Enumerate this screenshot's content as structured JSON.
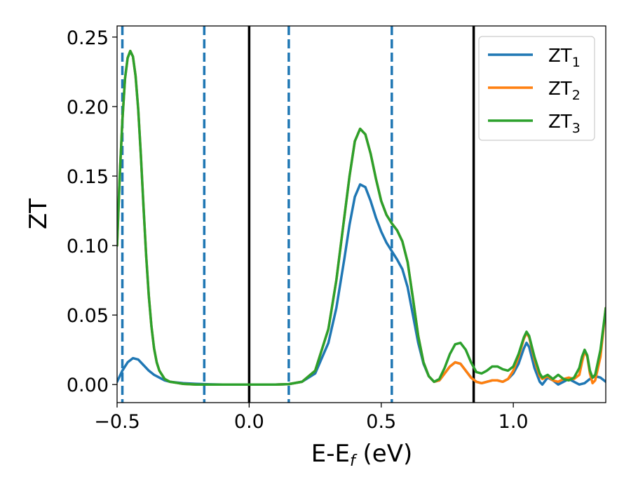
{
  "chart_data": {
    "type": "line",
    "xlabel": "E-E",
    "xlabel_sub": "f",
    "xlabel_unit": " (eV)",
    "ylabel": "ZT",
    "xlim": [
      -0.5,
      1.35
    ],
    "ylim": [
      -0.013,
      0.258
    ],
    "x_ticks": [
      -0.5,
      0.0,
      0.5,
      1.0
    ],
    "x_tick_labels": [
      "−0.5",
      "0.0",
      "0.5",
      "1.0"
    ],
    "y_ticks": [
      0.0,
      0.05,
      0.1,
      0.15,
      0.2,
      0.25
    ],
    "y_tick_labels": [
      "0.00",
      "0.05",
      "0.10",
      "0.15",
      "0.20",
      "0.25"
    ],
    "grid": false,
    "legend": "top-right",
    "vlines_solid": [
      0.0,
      0.85
    ],
    "vlines_dashed": [
      -0.48,
      -0.17,
      0.15,
      0.54
    ],
    "series": [
      {
        "name": "ZT",
        "name_sub": "1",
        "color": "#1f77b4",
        "points": [
          [
            -0.5,
            0.002
          ],
          [
            -0.48,
            0.01
          ],
          [
            -0.46,
            0.016
          ],
          [
            -0.44,
            0.019
          ],
          [
            -0.42,
            0.018
          ],
          [
            -0.4,
            0.014
          ],
          [
            -0.38,
            0.01
          ],
          [
            -0.36,
            0.007
          ],
          [
            -0.34,
            0.005
          ],
          [
            -0.32,
            0.003
          ],
          [
            -0.3,
            0.002
          ],
          [
            -0.25,
            0.001
          ],
          [
            -0.2,
            0.0005
          ],
          [
            -0.15,
            0.0002
          ],
          [
            -0.1,
            0.0
          ],
          [
            0.0,
            0.0
          ],
          [
            0.1,
            0.0
          ],
          [
            0.15,
            0.0003
          ],
          [
            0.2,
            0.002
          ],
          [
            0.25,
            0.008
          ],
          [
            0.3,
            0.03
          ],
          [
            0.33,
            0.055
          ],
          [
            0.36,
            0.09
          ],
          [
            0.38,
            0.115
          ],
          [
            0.4,
            0.135
          ],
          [
            0.42,
            0.144
          ],
          [
            0.44,
            0.142
          ],
          [
            0.46,
            0.132
          ],
          [
            0.48,
            0.12
          ],
          [
            0.5,
            0.11
          ],
          [
            0.52,
            0.102
          ],
          [
            0.54,
            0.096
          ],
          [
            0.56,
            0.09
          ],
          [
            0.58,
            0.083
          ],
          [
            0.6,
            0.07
          ],
          [
            0.62,
            0.05
          ],
          [
            0.64,
            0.03
          ],
          [
            0.66,
            0.015
          ],
          [
            0.68,
            0.006
          ],
          [
            0.7,
            0.002
          ],
          [
            0.72,
            0.003
          ],
          [
            0.74,
            0.008
          ],
          [
            0.76,
            0.013
          ],
          [
            0.78,
            0.016
          ],
          [
            0.8,
            0.015
          ],
          [
            0.82,
            0.01
          ],
          [
            0.84,
            0.005
          ],
          [
            0.86,
            0.002
          ],
          [
            0.88,
            0.001
          ],
          [
            0.9,
            0.002
          ],
          [
            0.92,
            0.003
          ],
          [
            0.94,
            0.003
          ],
          [
            0.96,
            0.002
          ],
          [
            0.98,
            0.004
          ],
          [
            1.0,
            0.008
          ],
          [
            1.02,
            0.015
          ],
          [
            1.04,
            0.026
          ],
          [
            1.05,
            0.03
          ],
          [
            1.06,
            0.027
          ],
          [
            1.08,
            0.012
          ],
          [
            1.1,
            0.002
          ],
          [
            1.11,
            0.0
          ],
          [
            1.13,
            0.005
          ],
          [
            1.15,
            0.003
          ],
          [
            1.17,
            0.0
          ],
          [
            1.19,
            0.002
          ],
          [
            1.21,
            0.004
          ],
          [
            1.23,
            0.002
          ],
          [
            1.25,
            0.0
          ],
          [
            1.27,
            0.001
          ],
          [
            1.29,
            0.004
          ],
          [
            1.31,
            0.006
          ],
          [
            1.33,
            0.005
          ],
          [
            1.35,
            0.002
          ]
        ]
      },
      {
        "name": "ZT",
        "name_sub": "2",
        "color": "#ff7f0e",
        "points": [
          [
            -0.5,
            0.1
          ],
          [
            -0.49,
            0.15
          ],
          [
            -0.48,
            0.19
          ],
          [
            -0.47,
            0.22
          ],
          [
            -0.46,
            0.235
          ],
          [
            -0.45,
            0.24
          ],
          [
            -0.44,
            0.236
          ],
          [
            -0.43,
            0.222
          ],
          [
            -0.42,
            0.198
          ],
          [
            -0.41,
            0.165
          ],
          [
            -0.4,
            0.128
          ],
          [
            -0.39,
            0.093
          ],
          [
            -0.38,
            0.064
          ],
          [
            -0.37,
            0.042
          ],
          [
            -0.36,
            0.026
          ],
          [
            -0.35,
            0.016
          ],
          [
            -0.34,
            0.01
          ],
          [
            -0.32,
            0.004
          ],
          [
            -0.3,
            0.002
          ],
          [
            -0.25,
            0.0005
          ],
          [
            -0.2,
            0.0
          ],
          [
            0.0,
            0.0
          ],
          [
            0.1,
            0.0
          ],
          [
            0.15,
            0.0003
          ],
          [
            0.2,
            0.002
          ],
          [
            0.25,
            0.01
          ],
          [
            0.3,
            0.04
          ],
          [
            0.33,
            0.075
          ],
          [
            0.36,
            0.12
          ],
          [
            0.38,
            0.15
          ],
          [
            0.4,
            0.175
          ],
          [
            0.42,
            0.184
          ],
          [
            0.44,
            0.18
          ],
          [
            0.46,
            0.166
          ],
          [
            0.48,
            0.148
          ],
          [
            0.5,
            0.132
          ],
          [
            0.52,
            0.122
          ],
          [
            0.54,
            0.116
          ],
          [
            0.56,
            0.111
          ],
          [
            0.58,
            0.103
          ],
          [
            0.6,
            0.088
          ],
          [
            0.62,
            0.062
          ],
          [
            0.64,
            0.035
          ],
          [
            0.66,
            0.016
          ],
          [
            0.68,
            0.006
          ],
          [
            0.7,
            0.002
          ],
          [
            0.72,
            0.003
          ],
          [
            0.74,
            0.008
          ],
          [
            0.76,
            0.013
          ],
          [
            0.78,
            0.016
          ],
          [
            0.8,
            0.015
          ],
          [
            0.82,
            0.01
          ],
          [
            0.84,
            0.005
          ],
          [
            0.86,
            0.002
          ],
          [
            0.88,
            0.001
          ],
          [
            0.9,
            0.002
          ],
          [
            0.92,
            0.003
          ],
          [
            0.94,
            0.003
          ],
          [
            0.96,
            0.002
          ],
          [
            0.98,
            0.004
          ],
          [
            1.0,
            0.01
          ],
          [
            1.02,
            0.02
          ],
          [
            1.04,
            0.033
          ],
          [
            1.05,
            0.037
          ],
          [
            1.06,
            0.034
          ],
          [
            1.08,
            0.018
          ],
          [
            1.1,
            0.006
          ],
          [
            1.11,
            0.004
          ],
          [
            1.13,
            0.006
          ],
          [
            1.15,
            0.003
          ],
          [
            1.17,
            0.002
          ],
          [
            1.19,
            0.004
          ],
          [
            1.21,
            0.005
          ],
          [
            1.23,
            0.004
          ],
          [
            1.25,
            0.007
          ],
          [
            1.26,
            0.016
          ],
          [
            1.27,
            0.024
          ],
          [
            1.28,
            0.02
          ],
          [
            1.29,
            0.008
          ],
          [
            1.3,
            0.001
          ],
          [
            1.31,
            0.003
          ],
          [
            1.33,
            0.02
          ],
          [
            1.35,
            0.055
          ]
        ]
      },
      {
        "name": "ZT",
        "name_sub": "3",
        "color": "#2ca02c",
        "points": [
          [
            -0.5,
            0.1
          ],
          [
            -0.49,
            0.15
          ],
          [
            -0.48,
            0.19
          ],
          [
            -0.47,
            0.22
          ],
          [
            -0.46,
            0.235
          ],
          [
            -0.45,
            0.24
          ],
          [
            -0.44,
            0.236
          ],
          [
            -0.43,
            0.222
          ],
          [
            -0.42,
            0.198
          ],
          [
            -0.41,
            0.165
          ],
          [
            -0.4,
            0.128
          ],
          [
            -0.39,
            0.093
          ],
          [
            -0.38,
            0.064
          ],
          [
            -0.37,
            0.042
          ],
          [
            -0.36,
            0.026
          ],
          [
            -0.35,
            0.016
          ],
          [
            -0.34,
            0.01
          ],
          [
            -0.32,
            0.004
          ],
          [
            -0.3,
            0.002
          ],
          [
            -0.25,
            0.0005
          ],
          [
            -0.2,
            0.0
          ],
          [
            0.0,
            0.0
          ],
          [
            0.1,
            0.0
          ],
          [
            0.15,
            0.0003
          ],
          [
            0.2,
            0.002
          ],
          [
            0.25,
            0.01
          ],
          [
            0.3,
            0.04
          ],
          [
            0.33,
            0.075
          ],
          [
            0.36,
            0.12
          ],
          [
            0.38,
            0.15
          ],
          [
            0.4,
            0.175
          ],
          [
            0.42,
            0.184
          ],
          [
            0.44,
            0.18
          ],
          [
            0.46,
            0.166
          ],
          [
            0.48,
            0.148
          ],
          [
            0.5,
            0.132
          ],
          [
            0.52,
            0.122
          ],
          [
            0.54,
            0.116
          ],
          [
            0.56,
            0.111
          ],
          [
            0.58,
            0.103
          ],
          [
            0.6,
            0.088
          ],
          [
            0.62,
            0.062
          ],
          [
            0.64,
            0.035
          ],
          [
            0.66,
            0.016
          ],
          [
            0.68,
            0.006
          ],
          [
            0.7,
            0.002
          ],
          [
            0.72,
            0.004
          ],
          [
            0.74,
            0.012
          ],
          [
            0.76,
            0.022
          ],
          [
            0.78,
            0.029
          ],
          [
            0.8,
            0.03
          ],
          [
            0.82,
            0.025
          ],
          [
            0.84,
            0.016
          ],
          [
            0.86,
            0.009
          ],
          [
            0.88,
            0.008
          ],
          [
            0.9,
            0.01
          ],
          [
            0.92,
            0.013
          ],
          [
            0.94,
            0.013
          ],
          [
            0.96,
            0.011
          ],
          [
            0.98,
            0.01
          ],
          [
            1.0,
            0.013
          ],
          [
            1.02,
            0.022
          ],
          [
            1.04,
            0.034
          ],
          [
            1.05,
            0.038
          ],
          [
            1.06,
            0.035
          ],
          [
            1.08,
            0.02
          ],
          [
            1.1,
            0.008
          ],
          [
            1.11,
            0.005
          ],
          [
            1.13,
            0.007
          ],
          [
            1.15,
            0.004
          ],
          [
            1.17,
            0.007
          ],
          [
            1.19,
            0.004
          ],
          [
            1.21,
            0.003
          ],
          [
            1.23,
            0.005
          ],
          [
            1.25,
            0.012
          ],
          [
            1.26,
            0.02
          ],
          [
            1.27,
            0.025
          ],
          [
            1.28,
            0.021
          ],
          [
            1.29,
            0.01
          ],
          [
            1.3,
            0.005
          ],
          [
            1.31,
            0.007
          ],
          [
            1.33,
            0.025
          ],
          [
            1.35,
            0.055
          ]
        ]
      }
    ]
  }
}
